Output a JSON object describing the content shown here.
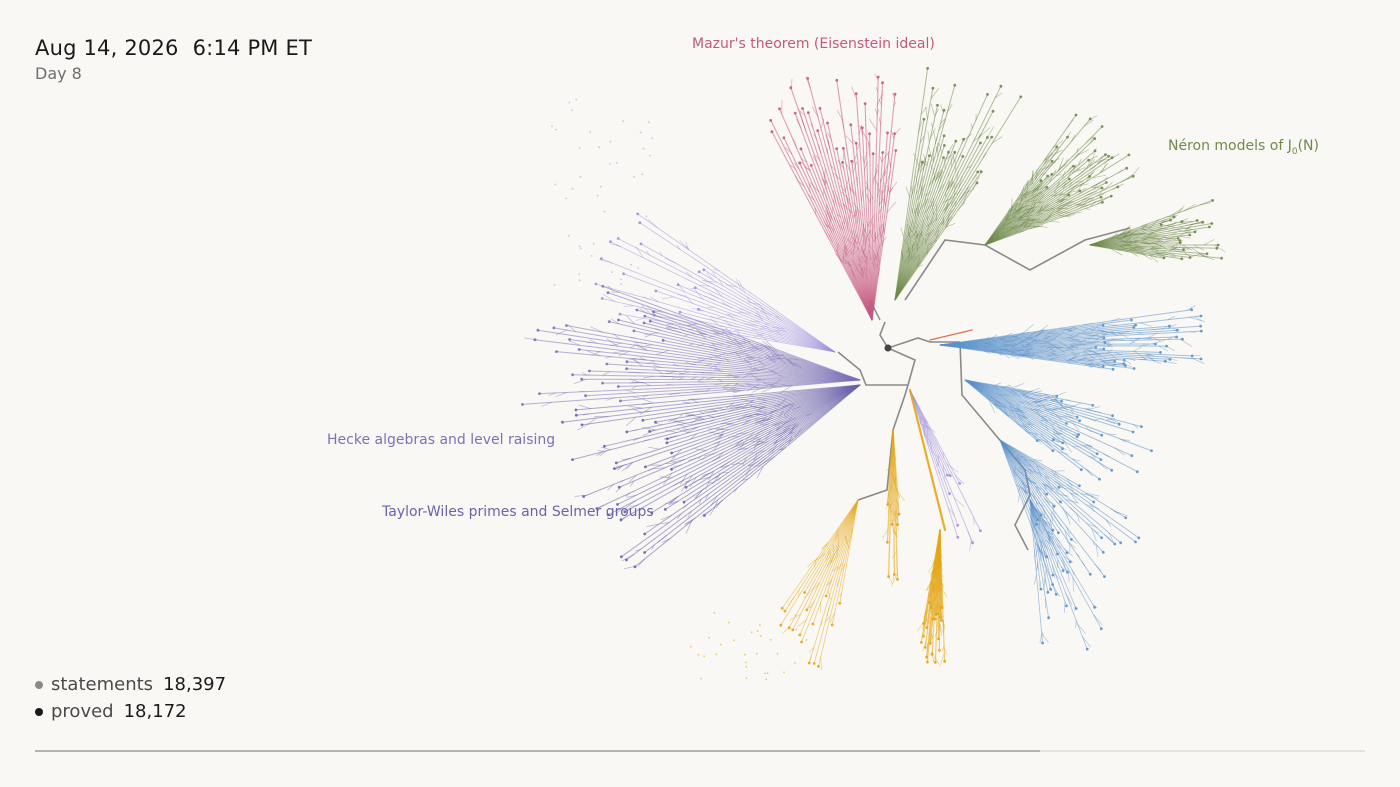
{
  "header": {
    "date": "Aug 14, 2026",
    "time": "6:14 PM ET",
    "day": "Day 8"
  },
  "clusters": [
    {
      "key": "mazur",
      "label": "Mazur's theorem (Eisenstein ideal)",
      "color": "#c4587f"
    },
    {
      "key": "neron",
      "label_main": "Néron models of J",
      "label_sub": "0",
      "label_tail": "(N)",
      "color": "#6f8a4c"
    },
    {
      "key": "hecke",
      "label": "Hecke algebras and level raising",
      "color": "#7c71b8"
    },
    {
      "key": "taylor",
      "label": "Taylor-Wiles primes and Selmer groups",
      "color": "#6a63ad"
    },
    {
      "key": "blue",
      "color": "#5b92cc"
    },
    {
      "key": "gold",
      "color": "#e3a614"
    },
    {
      "key": "lavender",
      "color": "#9d90e0"
    }
  ],
  "legend": {
    "statements_label": "statements",
    "statements_value": "18,397",
    "statements_color": "#8a8a8a",
    "proved_label": "proved",
    "proved_value": "18,172",
    "proved_color": "#1a1a1a"
  },
  "progress": {
    "fraction": 0.756
  }
}
